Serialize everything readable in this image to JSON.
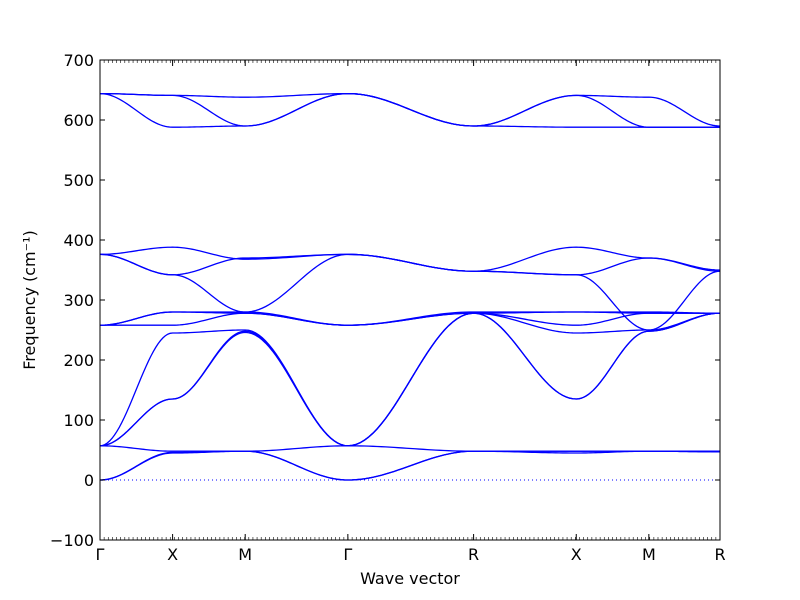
{
  "chart_data": {
    "type": "line",
    "title": "",
    "xlabel": "Wave vector",
    "ylabel": "Frequency (cm⁻¹)",
    "ylim": [
      -100,
      700
    ],
    "yticks": [
      -100,
      0,
      100,
      200,
      300,
      400,
      500,
      600,
      700
    ],
    "ytick_labels": [
      "−100",
      "0",
      "100",
      "200",
      "300",
      "400",
      "500",
      "600",
      "700"
    ],
    "kpoints": [
      {
        "label": "Γ",
        "position": 0
      },
      {
        "label": "X",
        "position": 0.5
      },
      {
        "label": "M",
        "position": 1.0
      },
      {
        "label": "Γ",
        "position": 1.707
      },
      {
        "label": "R",
        "position": 2.573
      },
      {
        "label": "X",
        "position": 3.28
      },
      {
        "label": "M",
        "position": 3.78
      },
      {
        "label": "R",
        "position": 4.27
      }
    ],
    "zero_line": 0,
    "grid": false,
    "series_color": "#0000ff",
    "series": [
      {
        "x": [
          0,
          0.5,
          1.0,
          1.707,
          2.573,
          3.28,
          3.78,
          4.27
        ],
        "y": [
          0,
          45,
          48,
          0,
          48,
          45,
          48,
          47
        ]
      },
      {
        "x": [
          0,
          0.5,
          1.0,
          1.707,
          2.573,
          3.28,
          3.78,
          4.27
        ],
        "y": [
          0,
          46,
          48,
          0,
          48,
          48,
          48,
          47
        ]
      },
      {
        "x": [
          0,
          0.5,
          1.0,
          1.707,
          2.573,
          3.28,
          3.78,
          4.27
        ],
        "y": [
          57,
          48,
          48,
          57,
          48,
          48,
          48,
          48
        ]
      },
      {
        "x": [
          0,
          0.5,
          1.0,
          1.707,
          2.573,
          3.28,
          3.78,
          4.27
        ],
        "y": [
          57,
          135,
          248,
          57,
          278,
          135,
          248,
          278
        ]
      },
      {
        "x": [
          0,
          0.5,
          1.0,
          1.707,
          2.573,
          3.28,
          3.78,
          4.27
        ],
        "y": [
          57,
          135,
          246,
          57,
          278,
          135,
          248,
          278
        ]
      },
      {
        "x": [
          0,
          0.5,
          1.0,
          1.707,
          2.573,
          3.28,
          3.78,
          4.27
        ],
        "y": [
          57,
          245,
          250,
          57,
          278,
          245,
          250,
          278
        ]
      },
      {
        "x": [
          0,
          0.5,
          1.0,
          1.707,
          2.573,
          3.28,
          3.78,
          4.27
        ],
        "y": [
          258,
          258,
          278,
          258,
          278,
          258,
          278,
          278
        ]
      },
      {
        "x": [
          0,
          0.5,
          1.0,
          1.707,
          2.573,
          3.28,
          3.78,
          4.27
        ],
        "y": [
          258,
          280,
          278,
          258,
          278,
          280,
          278,
          278
        ]
      },
      {
        "x": [
          0,
          0.5,
          1.0,
          1.707,
          2.573,
          3.28,
          3.78,
          4.27
        ],
        "y": [
          258,
          280,
          280,
          258,
          280,
          280,
          280,
          278
        ]
      },
      {
        "x": [
          0,
          0.5,
          1.0,
          1.707,
          2.573,
          3.28,
          3.78,
          4.27
        ],
        "y": [
          376,
          342,
          280,
          376,
          348,
          342,
          250,
          348
        ]
      },
      {
        "x": [
          0,
          0.5,
          1.0,
          1.707,
          2.573,
          3.28,
          3.78,
          4.27
        ],
        "y": [
          376,
          342,
          370,
          376,
          348,
          342,
          370,
          348
        ]
      },
      {
        "x": [
          0,
          0.5,
          1.0,
          1.707,
          2.573,
          3.28,
          3.78,
          4.27
        ],
        "y": [
          376,
          388,
          368,
          376,
          348,
          388,
          370,
          350
        ]
      },
      {
        "x": [
          0,
          0.5,
          1.0,
          1.707,
          2.573,
          3.28,
          3.78,
          4.27
        ],
        "y": [
          644,
          588,
          590,
          644,
          590,
          588,
          588,
          588
        ]
      },
      {
        "x": [
          0,
          0.5,
          1.0,
          1.707,
          2.573,
          3.28,
          3.78,
          4.27
        ],
        "y": [
          644,
          641,
          590,
          644,
          590,
          641,
          588,
          588
        ]
      },
      {
        "x": [
          0,
          0.5,
          1.0,
          1.707,
          2.573,
          3.28,
          3.78,
          4.27
        ],
        "y": [
          644,
          641,
          638,
          644,
          590,
          641,
          638,
          590
        ]
      }
    ]
  }
}
